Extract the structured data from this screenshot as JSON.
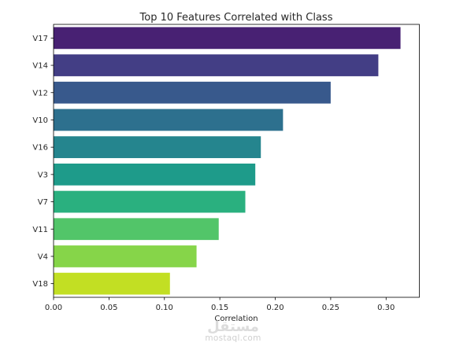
{
  "chart_data": {
    "type": "bar",
    "orientation": "horizontal",
    "title": "Top 10 Features Correlated with Class",
    "xlabel": "Correlation",
    "ylabel": "",
    "categories": [
      "V17",
      "V14",
      "V12",
      "V10",
      "V16",
      "V3",
      "V7",
      "V11",
      "V4",
      "V18"
    ],
    "values": [
      0.313,
      0.293,
      0.25,
      0.207,
      0.187,
      0.182,
      0.173,
      0.149,
      0.129,
      0.105
    ],
    "xlim": [
      0,
      0.33
    ],
    "xticks": [
      0.0,
      0.05,
      0.1,
      0.15,
      0.2,
      0.25,
      0.3
    ],
    "xtick_labels": [
      "0.00",
      "0.05",
      "0.10",
      "0.15",
      "0.20",
      "0.25",
      "0.30"
    ],
    "bar_colors": [
      "#482173",
      "#433e85",
      "#38598c",
      "#2d708e",
      "#25858e",
      "#1e9b8a",
      "#2ab07f",
      "#52c569",
      "#86d549",
      "#c2df23"
    ],
    "grid": false,
    "legend": "none"
  },
  "watermark": {
    "arabic": "مستقل",
    "latin": "mostaql.com"
  }
}
